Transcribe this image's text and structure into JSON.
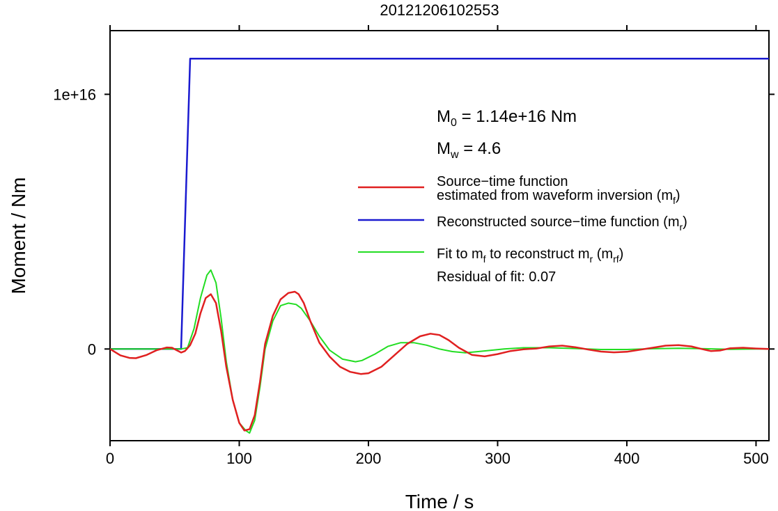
{
  "chart_data": {
    "type": "line",
    "title": "20121206102553",
    "xlabel": "Time / s",
    "ylabel": "Moment / Nm",
    "xlim": [
      0,
      510
    ],
    "ylim": [
      -3600000000000000.0,
      1.25e+16
    ],
    "x_ticks": [
      0,
      100,
      200,
      300,
      400,
      500
    ],
    "x_tick_labels": [
      "0",
      "100",
      "200",
      "300",
      "400",
      "500"
    ],
    "y_ticks": [
      0,
      1e+16
    ],
    "y_tick_labels": [
      "0",
      "1e+16"
    ],
    "grid": false,
    "legend_position": "right",
    "annotations": {
      "m0": {
        "prefix": "M",
        "sub": "0",
        "text": " = 1.14e+16 Nm"
      },
      "mw": {
        "prefix": "M",
        "sub": "w",
        "text": " = 4.6"
      },
      "residual": "Residual of fit: 0.07"
    },
    "legend": [
      {
        "color": "#e02020",
        "width": 2.5,
        "line1": "Source−time function",
        "line2": "estimated from waveform inversion (m",
        "line2_sub": "f",
        "line2_end": ")"
      },
      {
        "color": "#1a1ad0",
        "width": 2.5,
        "line1": "Reconstructed source−time function (m",
        "line1_sub": "r",
        "line1_end": ")"
      },
      {
        "color": "#22dd22",
        "width": 2,
        "line1": "Fit to m",
        "line1_sub": "f",
        "line1_mid": " to reconstruct m",
        "line1_sub2": "r",
        "line1_mid2": " (m",
        "line1_sub3": "rf",
        "line1_end": ")"
      }
    ],
    "series": [
      {
        "color": "#1a1ad0",
        "x": [
          0,
          55,
          62,
          510
        ],
        "y": [
          0,
          0,
          1.14e+16,
          1.14e+16
        ]
      },
      {
        "color": "#22dd22",
        "x": [
          0,
          50,
          55,
          60,
          65,
          70,
          75,
          78,
          82,
          86,
          90,
          95,
          100,
          105,
          108,
          112,
          116,
          120,
          126,
          132,
          138,
          144,
          148,
          155,
          162,
          170,
          180,
          190,
          195,
          205,
          215,
          225,
          235,
          245,
          255,
          265,
          275,
          285,
          295,
          305,
          320,
          340,
          360,
          380,
          400,
          420,
          440,
          460,
          480,
          500,
          510
        ],
        "y": [
          0,
          0,
          0,
          50000000000000.0,
          800000000000000.0,
          2000000000000000.0,
          2900000000000000.0,
          3100000000000000.0,
          2600000000000000.0,
          1200000000000000.0,
          -500000000000000.0,
          -2000000000000000.0,
          -2900000000000000.0,
          -3200000000000000.0,
          -3300000000000000.0,
          -2800000000000000.0,
          -1500000000000000.0,
          0,
          1100000000000000.0,
          1700000000000000.0,
          1800000000000000.0,
          1750000000000000.0,
          1600000000000000.0,
          1100000000000000.0,
          500000000000000.0,
          -50000000000000.0,
          -400000000000000.0,
          -500000000000000.0,
          -450000000000000.0,
          -200000000000000.0,
          100000000000000.0,
          250000000000000.0,
          250000000000000.0,
          150000000000000.0,
          0,
          -100000000000000.0,
          -150000000000000.0,
          -100000000000000.0,
          -50000000000000.0,
          0,
          50000000000000.0,
          50000000000000.0,
          20000000000000.0,
          -20000000000000.0,
          -20000000000000.0,
          10000000000000.0,
          30000000000000.0,
          10000000000000.0,
          -10000000000000.0,
          0,
          0
        ]
      },
      {
        "color": "#e02020",
        "x": [
          0,
          8,
          15,
          20,
          28,
          36,
          44,
          48,
          52,
          55,
          58,
          62,
          66,
          70,
          74,
          78,
          82,
          86,
          90,
          95,
          100,
          104,
          108,
          112,
          116,
          120,
          126,
          132,
          138,
          143,
          146,
          150,
          155,
          162,
          170,
          178,
          186,
          194,
          200,
          210,
          220,
          230,
          240,
          248,
          255,
          262,
          270,
          280,
          290,
          300,
          310,
          320,
          330,
          340,
          350,
          360,
          370,
          380,
          390,
          400,
          410,
          420,
          430,
          440,
          450,
          458,
          465,
          472,
          480,
          490,
          500,
          510
        ],
        "y": [
          0,
          -250000000000000.0,
          -350000000000000.0,
          -360000000000000.0,
          -240000000000000.0,
          -50000000000000.0,
          60000000000000.0,
          50000000000000.0,
          -60000000000000.0,
          -140000000000000.0,
          -80000000000000.0,
          150000000000000.0,
          600000000000000.0,
          1400000000000000.0,
          2000000000000000.0,
          2150000000000000.0,
          1800000000000000.0,
          700000000000000.0,
          -700000000000000.0,
          -2000000000000000.0,
          -2900000000000000.0,
          -3200000000000000.0,
          -3150000000000000.0,
          -2600000000000000.0,
          -1300000000000000.0,
          200000000000000.0,
          1300000000000000.0,
          1950000000000000.0,
          2200000000000000.0,
          2250000000000000.0,
          2150000000000000.0,
          1800000000000000.0,
          1100000000000000.0,
          250000000000000.0,
          -300000000000000.0,
          -700000000000000.0,
          -900000000000000.0,
          -980000000000000.0,
          -950000000000000.0,
          -700000000000000.0,
          -250000000000000.0,
          200000000000000.0,
          500000000000000.0,
          600000000000000.0,
          550000000000000.0,
          350000000000000.0,
          50000000000000.0,
          -230000000000000.0,
          -290000000000000.0,
          -200000000000000.0,
          -80000000000000.0,
          -10000000000000.0,
          20000000000000.0,
          100000000000000.0,
          130000000000000.0,
          70000000000000.0,
          -20000000000000.0,
          -100000000000000.0,
          -130000000000000.0,
          -110000000000000.0,
          -30000000000000.0,
          50000000000000.0,
          130000000000000.0,
          150000000000000.0,
          100000000000000.0,
          0,
          -80000000000000.0,
          -60000000000000.0,
          30000000000000.0,
          50000000000000.0,
          20000000000000.0,
          0
        ]
      }
    ]
  }
}
